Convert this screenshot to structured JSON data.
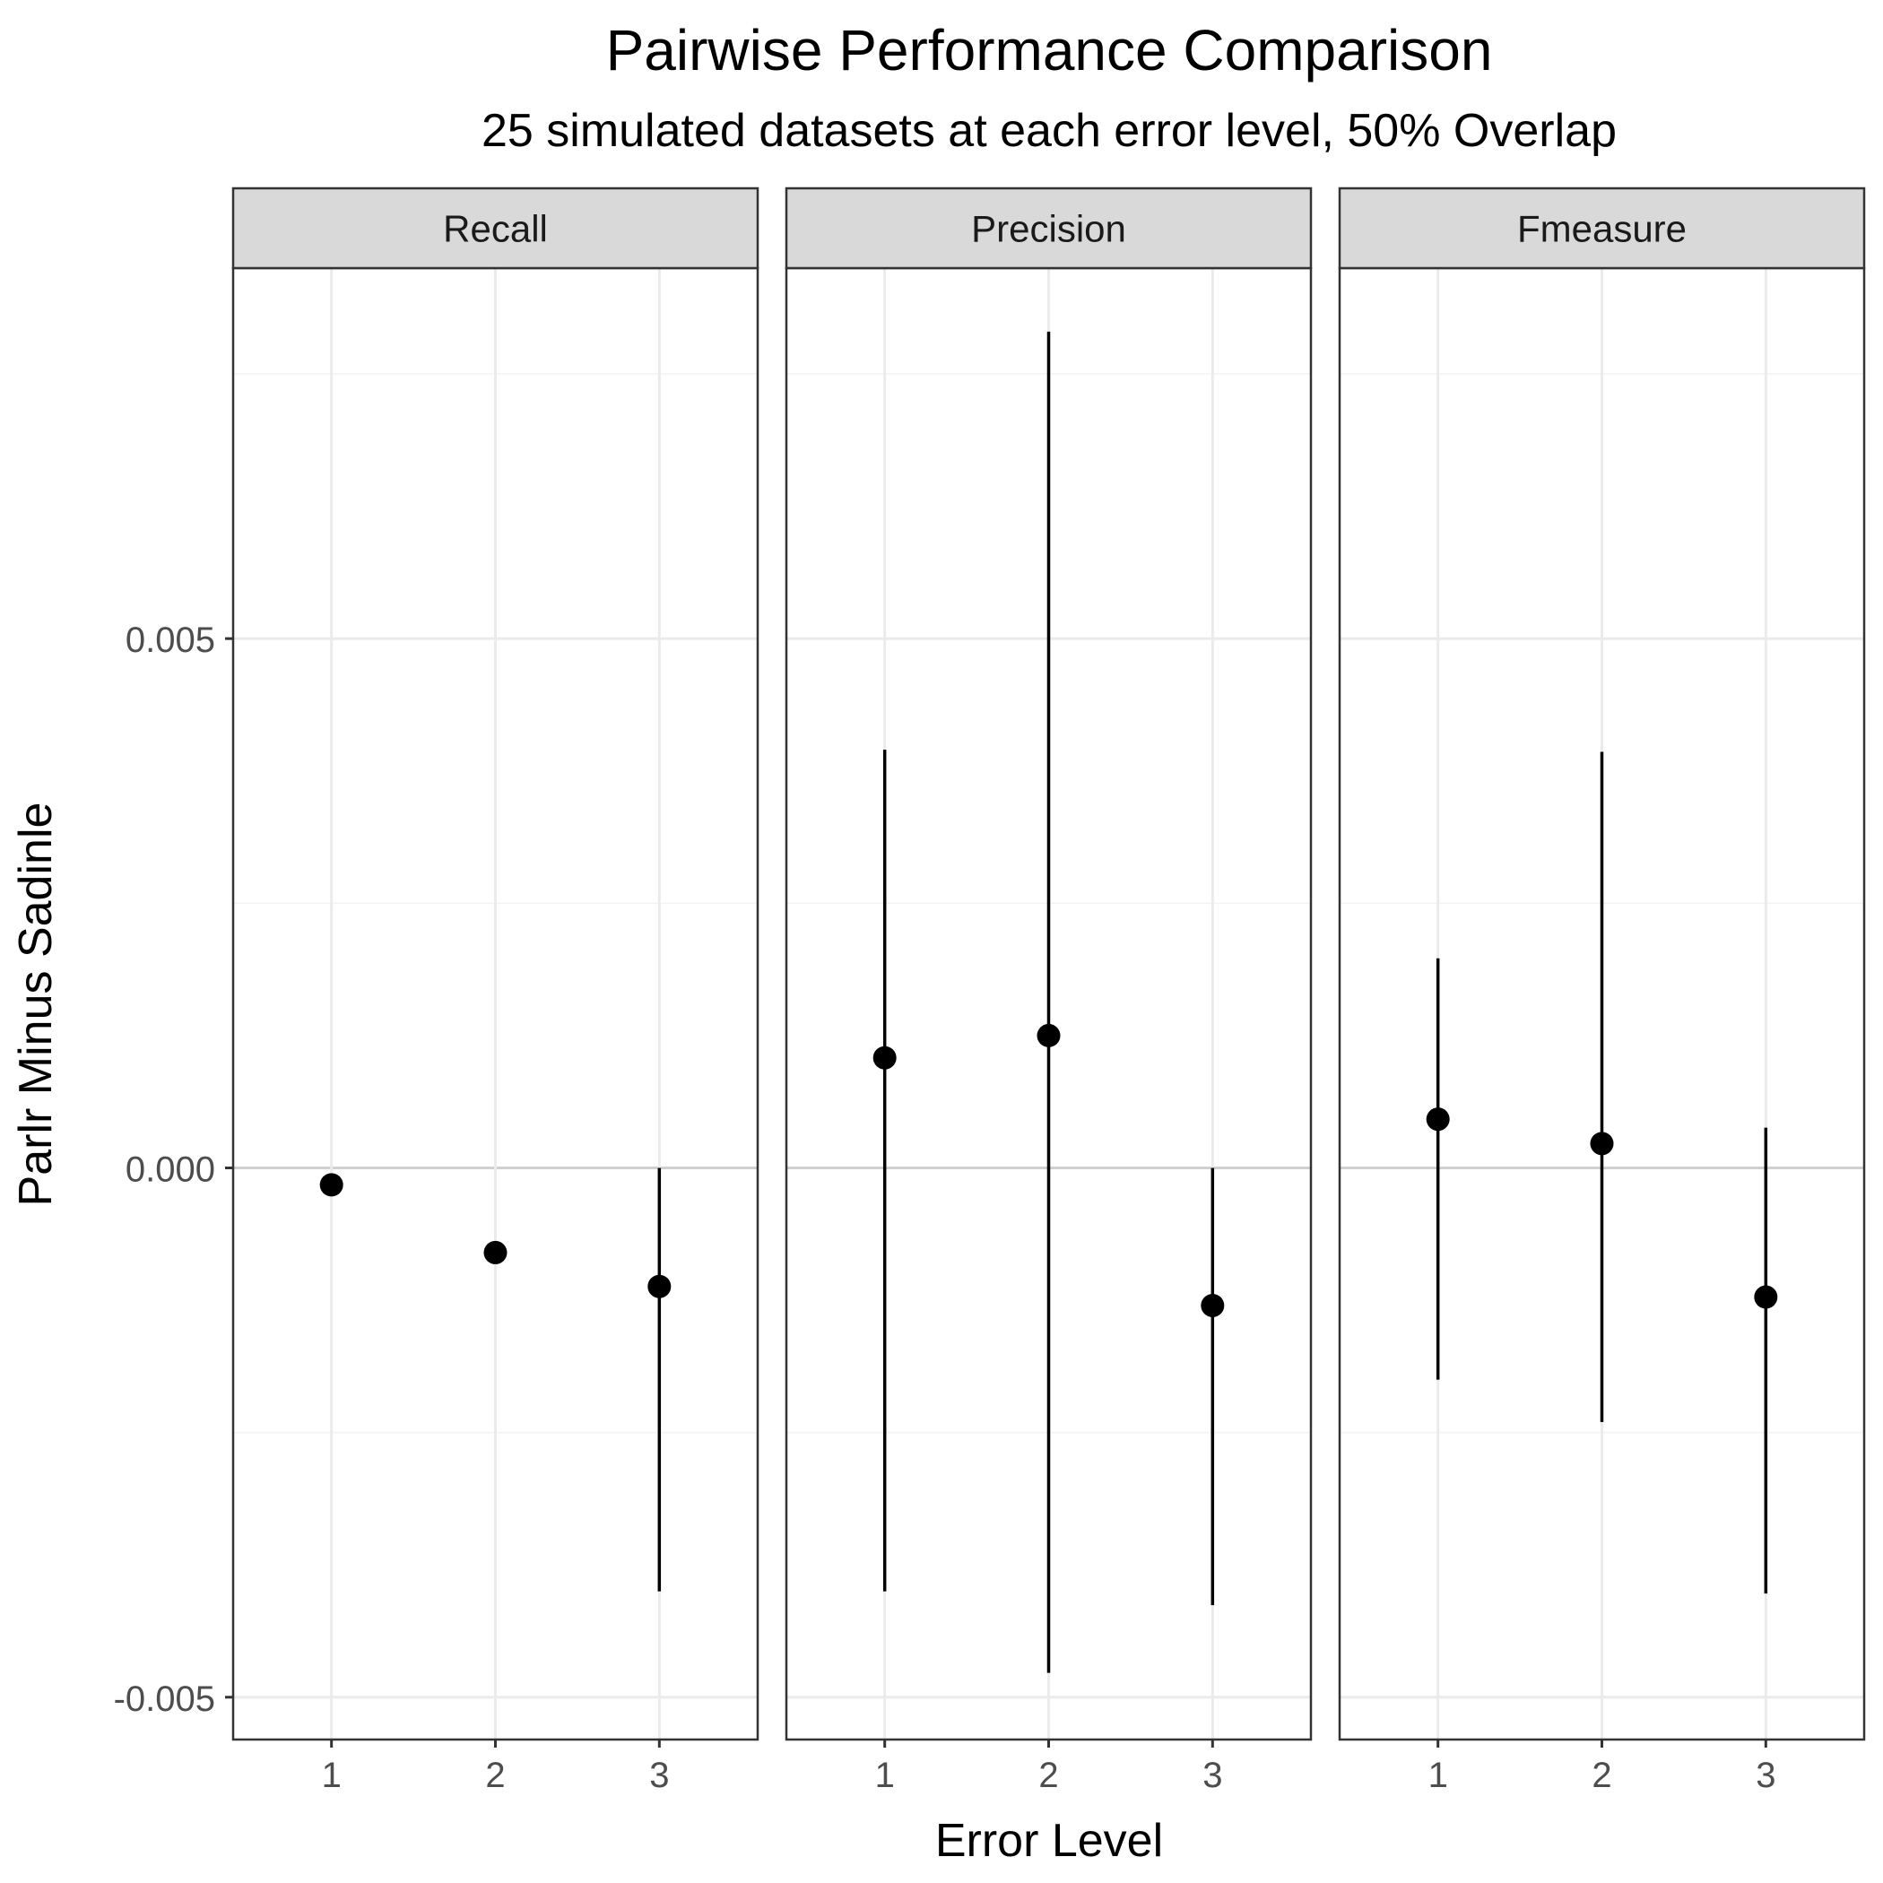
{
  "chart_data": {
    "type": "point-range",
    "title": "Pairwise Performance Comparison",
    "subtitle": "25 simulated datasets at each error level, 50% Overlap",
    "xlabel": "Error Level",
    "ylabel": "Parlr Minus Sadinle",
    "ylim": [
      -0.0054,
      0.0085
    ],
    "y_ticks": [
      -0.005,
      0.0,
      0.005
    ],
    "y_tick_labels": [
      "-0.005",
      "0.000",
      "0.005"
    ],
    "y_minor_ticks": [
      -0.0025,
      0.0025,
      0.0075
    ],
    "x_categories": [
      "1",
      "2",
      "3"
    ],
    "grid": true,
    "zero_line": true,
    "colors": {
      "point": "#000000",
      "range": "#000000",
      "strip_fill": "#d9d9d9",
      "panel_border": "#333333",
      "grid_major": "#ebebeb",
      "grid_minor": "#f3f3f3",
      "zero_line": "#d0d0d0"
    },
    "panels": [
      {
        "label": "Recall",
        "points": [
          {
            "x": "1",
            "y": -0.00016,
            "ymin": null,
            "ymax": null
          },
          {
            "x": "2",
            "y": -0.0008,
            "ymin": null,
            "ymax": null
          },
          {
            "x": "3",
            "y": -0.00112,
            "ymin": -0.004,
            "ymax": 0.0
          }
        ]
      },
      {
        "label": "Precision",
        "points": [
          {
            "x": "1",
            "y": 0.00104,
            "ymin": -0.004,
            "ymax": 0.00395
          },
          {
            "x": "2",
            "y": 0.00125,
            "ymin": -0.00477,
            "ymax": 0.0079
          },
          {
            "x": "3",
            "y": -0.0013,
            "ymin": -0.00413,
            "ymax": 0.0
          }
        ]
      },
      {
        "label": "Fmeasure",
        "points": [
          {
            "x": "1",
            "y": 0.00046,
            "ymin": -0.002,
            "ymax": 0.00198
          },
          {
            "x": "2",
            "y": 0.00023,
            "ymin": -0.0024,
            "ymax": 0.00393
          },
          {
            "x": "3",
            "y": -0.00122,
            "ymin": -0.00402,
            "ymax": 0.00038
          }
        ]
      }
    ]
  }
}
